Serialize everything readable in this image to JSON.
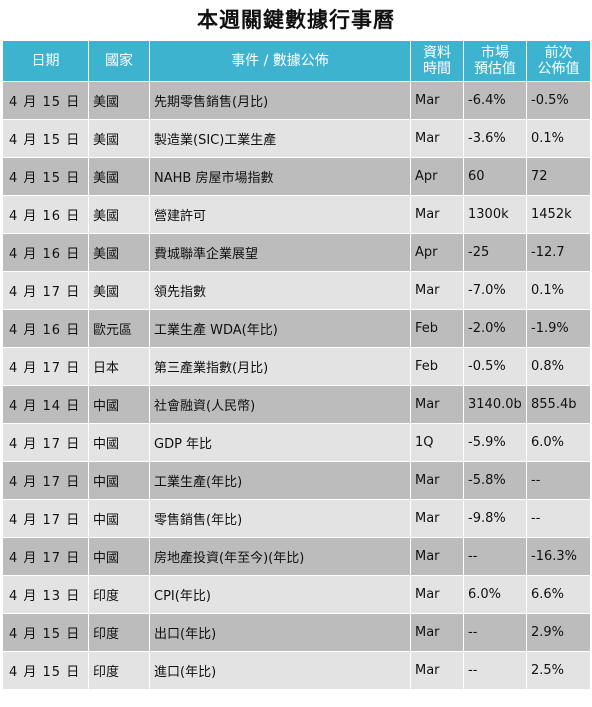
{
  "title": "本週關鍵數據行事曆",
  "headers": {
    "date": "日期",
    "country": "國家",
    "event": "事件 / 數據公佈",
    "period_line1": "資料",
    "period_line2": "時間",
    "forecast_line1": "市場",
    "forecast_line2": "預估值",
    "previous_line1": "前次",
    "previous_line2": "公佈值"
  },
  "rows": [
    {
      "date": "4 月 15 日",
      "country": "美國",
      "event": "先期零售銷售(月比)",
      "period": "Mar",
      "forecast": "-6.4%",
      "previous": "-0.5%"
    },
    {
      "date": "4 月 15 日",
      "country": "美國",
      "event": "製造業(SIC)工業生產",
      "period": "Mar",
      "forecast": "-3.6%",
      "previous": "0.1%"
    },
    {
      "date": "4 月 15 日",
      "country": "美國",
      "event": "NAHB 房屋市場指數",
      "period": "Apr",
      "forecast": "60",
      "previous": "72"
    },
    {
      "date": "4 月 16 日",
      "country": "美國",
      "event": "營建許可",
      "period": "Mar",
      "forecast": "1300k",
      "previous": "1452k"
    },
    {
      "date": "4 月 16 日",
      "country": "美國",
      "event": "費城聯準企業展望",
      "period": "Apr",
      "forecast": "-25",
      "previous": "-12.7"
    },
    {
      "date": "4 月 17 日",
      "country": "美國",
      "event": "領先指數",
      "period": "Mar",
      "forecast": "-7.0%",
      "previous": "0.1%"
    },
    {
      "date": "4 月 16 日",
      "country": "歐元區",
      "event": "工業生產 WDA(年比)",
      "period": "Feb",
      "forecast": "-2.0%",
      "previous": "-1.9%"
    },
    {
      "date": "4 月 17 日",
      "country": "日本",
      "event": "第三產業指數(月比)",
      "period": "Feb",
      "forecast": "-0.5%",
      "previous": "0.8%"
    },
    {
      "date": "4 月 14 日",
      "country": "中國",
      "event": "社會融資(人民幣)",
      "period": "Mar",
      "forecast": "3140.0b",
      "previous": "855.4b"
    },
    {
      "date": "4 月 17 日",
      "country": "中國",
      "event": "GDP 年比",
      "period": "1Q",
      "forecast": "-5.9%",
      "previous": "6.0%"
    },
    {
      "date": "4 月 17 日",
      "country": "中國",
      "event": "工業生產(年比)",
      "period": "Mar",
      "forecast": "-5.8%",
      "previous": "--"
    },
    {
      "date": "4 月 17 日",
      "country": "中國",
      "event": "零售銷售(年比)",
      "period": "Mar",
      "forecast": "-9.8%",
      "previous": "--"
    },
    {
      "date": "4 月 17 日",
      "country": "中國",
      "event": "房地產投資(年至今)(年比)",
      "period": "Mar",
      "forecast": "--",
      "previous": "-16.3%"
    },
    {
      "date": "4 月 13 日",
      "country": "印度",
      "event": "CPI(年比)",
      "period": "Mar",
      "forecast": "6.0%",
      "previous": "6.6%"
    },
    {
      "date": "4 月 15 日",
      "country": "印度",
      "event": "出口(年比)",
      "period": "Mar",
      "forecast": "--",
      "previous": "2.9%"
    },
    {
      "date": "4 月 15 日",
      "country": "印度",
      "event": "進口(年比)",
      "period": "Mar",
      "forecast": "--",
      "previous": "2.5%"
    }
  ]
}
